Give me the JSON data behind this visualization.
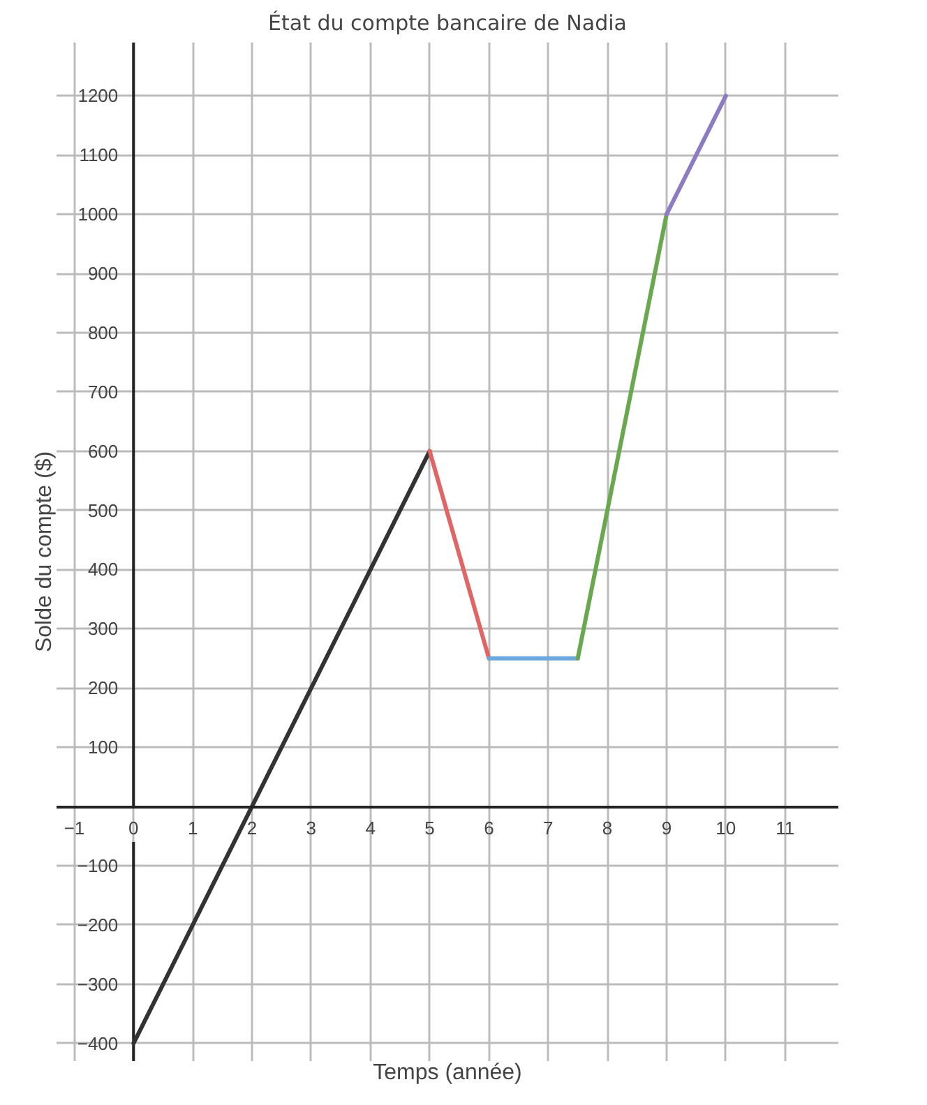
{
  "chart_data": {
    "type": "line",
    "title": "État du compte bancaire de Nadia",
    "xlabel": "Temps (année)",
    "ylabel": "Solde du compte ($)",
    "series": [
      {
        "color": "#333333",
        "x": [
          0,
          5
        ],
        "values": [
          -400,
          600
        ]
      },
      {
        "color": "#e06666",
        "x": [
          5,
          6
        ],
        "values": [
          600,
          250
        ]
      },
      {
        "color": "#6fa8dc",
        "x": [
          6,
          7.5
        ],
        "values": [
          250,
          250
        ]
      },
      {
        "color": "#6aa84f",
        "x": [
          7.5,
          9
        ],
        "values": [
          250,
          1000
        ]
      },
      {
        "color": "#8e7cc3",
        "x": [
          9,
          10
        ],
        "values": [
          1000,
          1200
        ]
      }
    ],
    "xlim": [
      -1.3,
      11.9
    ],
    "ylim": [
      -430,
      1290
    ],
    "xticks": [
      -1,
      0,
      1,
      2,
      3,
      4,
      5,
      6,
      7,
      8,
      9,
      10,
      11
    ],
    "yticks": [
      -400,
      -300,
      -200,
      -100,
      100,
      200,
      300,
      400,
      500,
      600,
      700,
      800,
      900,
      1000,
      1100,
      1200
    ],
    "grid": true,
    "marker": "none",
    "line_style": "solid"
  }
}
